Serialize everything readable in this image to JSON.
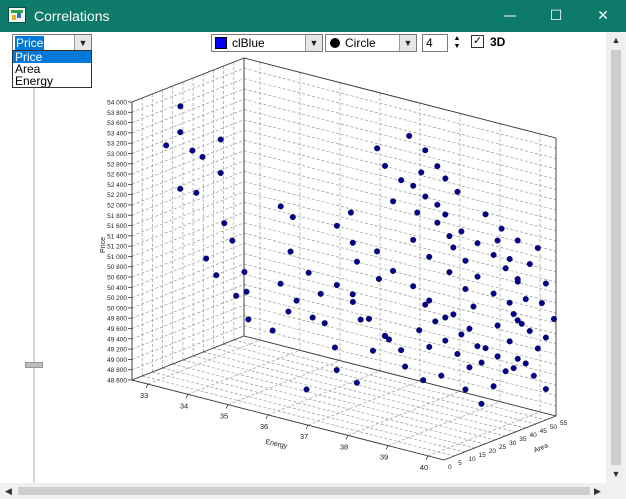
{
  "window": {
    "title": "Correlations",
    "controls": {
      "minimize": "—",
      "maximize": "☐",
      "close": "✕"
    }
  },
  "toolbar": {
    "axis_select": {
      "value": "Price",
      "options": [
        "Price",
        "Area",
        "Energy"
      ]
    },
    "color_select": {
      "value": "clBlue",
      "color": "#0000ee"
    },
    "shape_select": {
      "value": "Circle"
    },
    "size_spin": {
      "value": "4"
    },
    "three_d": {
      "label": "3D",
      "checked": true,
      "check_glyph": "✓"
    }
  },
  "chart_data": {
    "type": "scatter",
    "mode": "3d",
    "ylabel": "Price",
    "xlabel": "Energy",
    "zlabel": "Area",
    "y_ticks": [
      48600,
      48800,
      49000,
      49200,
      49400,
      49600,
      49800,
      50000,
      50200,
      50400,
      50600,
      50800,
      51000,
      51200,
      51400,
      51600,
      51800,
      52000,
      52200,
      52400,
      52600,
      52800,
      53000,
      53200,
      53400,
      53600,
      53800,
      54000
    ],
    "y_tick_labels": [
      "48 600",
      "48 800",
      "49 000",
      "49 200",
      "49 400",
      "49 600",
      "49 800",
      "50 000",
      "50 200",
      "50 400",
      "50 600",
      "50 800",
      "51 000",
      "51 200",
      "51 400",
      "51 600",
      "51 800",
      "52 000",
      "52 200",
      "52 400",
      "52 600",
      "52 800",
      "53 000",
      "53 200",
      "53 400",
      "53 600",
      "53 800",
      "54 000"
    ],
    "x_ticks": [
      33,
      34,
      35,
      36,
      37,
      38,
      39,
      40
    ],
    "z_ticks": [
      0,
      5,
      10,
      15,
      20,
      25,
      30,
      35,
      40,
      45,
      50,
      55
    ],
    "ylim": [
      48600,
      54000
    ],
    "xlim": [
      32.6,
      40.4
    ],
    "zlim": [
      0,
      55
    ],
    "grid": true,
    "marker": {
      "shape": "circle",
      "color": "#00008b",
      "size": 4
    },
    "points": [
      [
        33.3,
        53900,
        10
      ],
      [
        33.2,
        53200,
        5
      ],
      [
        33.4,
        53450,
        8
      ],
      [
        33.5,
        53050,
        12
      ],
      [
        33.6,
        52900,
        15
      ],
      [
        33.5,
        52400,
        6
      ],
      [
        33.8,
        53200,
        20
      ],
      [
        33.9,
        52600,
        18
      ],
      [
        33.7,
        52300,
        10
      ],
      [
        34.5,
        51900,
        8
      ],
      [
        34.6,
        51550,
        10
      ],
      [
        34.2,
        51200,
        5
      ],
      [
        34.8,
        50950,
        12
      ],
      [
        34.3,
        50850,
        8
      ],
      [
        34.9,
        50600,
        6
      ],
      [
        34.7,
        50500,
        15
      ],
      [
        35.0,
        50100,
        10
      ],
      [
        35.2,
        49800,
        18
      ],
      [
        35.3,
        52200,
        20
      ],
      [
        35.5,
        52000,
        22
      ],
      [
        35.8,
        51500,
        15
      ],
      [
        36.1,
        51100,
        18
      ],
      [
        36.3,
        50700,
        20
      ],
      [
        35.9,
        50400,
        12
      ],
      [
        36.4,
        49600,
        25
      ],
      [
        36.7,
        49300,
        20
      ],
      [
        36.2,
        48900,
        15
      ],
      [
        36.8,
        52300,
        25
      ],
      [
        37.0,
        51800,
        22
      ],
      [
        37.3,
        51600,
        28
      ],
      [
        37.5,
        51150,
        25
      ],
      [
        37.1,
        50850,
        20
      ],
      [
        37.4,
        50450,
        18
      ],
      [
        37.8,
        50150,
        22
      ],
      [
        37.2,
        53550,
        30
      ],
      [
        37.5,
        53300,
        28
      ],
      [
        37.7,
        53000,
        32
      ],
      [
        37.6,
        52600,
        30
      ],
      [
        37.9,
        52900,
        34
      ],
      [
        38.1,
        52700,
        36
      ],
      [
        38.0,
        52400,
        34
      ],
      [
        38.3,
        52200,
        38
      ],
      [
        37.9,
        53900,
        32
      ],
      [
        38.2,
        53650,
        34
      ],
      [
        38.4,
        53350,
        36
      ],
      [
        38.5,
        53100,
        38
      ],
      [
        38.7,
        52850,
        40
      ],
      [
        38.6,
        52450,
        36
      ],
      [
        38.9,
        52150,
        38
      ],
      [
        38.8,
        51850,
        36
      ],
      [
        38.3,
        51600,
        34
      ],
      [
        38.6,
        51300,
        38
      ],
      [
        38.9,
        51000,
        40
      ],
      [
        39.1,
        50700,
        40
      ],
      [
        38.7,
        50500,
        38
      ],
      [
        39.0,
        50250,
        40
      ],
      [
        39.3,
        49900,
        42
      ],
      [
        39.2,
        49600,
        42
      ],
      [
        39.5,
        52000,
        44
      ],
      [
        39.7,
        51650,
        46
      ],
      [
        39.9,
        51300,
        46
      ],
      [
        40.0,
        50900,
        48
      ],
      [
        39.8,
        50600,
        46
      ],
      [
        40.1,
        50300,
        48
      ],
      [
        40.2,
        49950,
        50
      ],
      [
        40.0,
        49650,
        48
      ],
      [
        38.5,
        49300,
        36
      ],
      [
        38.9,
        49050,
        40
      ],
      [
        39.2,
        48800,
        42
      ],
      [
        39.4,
        49150,
        44
      ],
      [
        39.6,
        49450,
        46
      ],
      [
        39.8,
        49700,
        48
      ],
      [
        40.1,
        49400,
        50
      ],
      [
        40.3,
        49150,
        52
      ],
      [
        39.1,
        51900,
        42
      ],
      [
        39.4,
        51700,
        44
      ],
      [
        39.6,
        51450,
        46
      ],
      [
        39.8,
        51200,
        48
      ],
      [
        40.0,
        51550,
        50
      ],
      [
        40.3,
        51200,
        52
      ],
      [
        40.2,
        50800,
        52
      ],
      [
        40.4,
        50500,
        54
      ],
      [
        38.0,
        51000,
        32
      ],
      [
        38.2,
        50650,
        34
      ],
      [
        38.4,
        50350,
        35
      ],
      [
        38.6,
        50000,
        36
      ],
      [
        38.8,
        49750,
        38
      ],
      [
        39.0,
        49500,
        40
      ],
      [
        38.3,
        49850,
        34
      ],
      [
        38.1,
        50150,
        33
      ],
      [
        36.5,
        52000,
        24
      ],
      [
        36.9,
        51350,
        26
      ],
      [
        37.6,
        49950,
        28
      ],
      [
        37.3,
        49700,
        26
      ],
      [
        37.9,
        49450,
        30
      ],
      [
        38.2,
        49200,
        33
      ],
      [
        37.0,
        49050,
        24
      ],
      [
        36.4,
        50150,
        20
      ],
      [
        39.3,
        52500,
        42
      ],
      [
        39.6,
        52250,
        44
      ],
      [
        39.9,
        52050,
        46
      ],
      [
        40.2,
        51900,
        50
      ],
      [
        39.7,
        50050,
        46
      ],
      [
        39.5,
        50350,
        44
      ],
      [
        39.9,
        50500,
        46
      ],
      [
        40.3,
        50150,
        52
      ],
      [
        38.1,
        53200,
        34
      ],
      [
        38.4,
        52600,
        36
      ],
      [
        38.6,
        52000,
        38
      ],
      [
        38.9,
        51550,
        40
      ],
      [
        39.1,
        51250,
        42
      ],
      [
        39.4,
        50950,
        44
      ],
      [
        39.7,
        50800,
        46
      ],
      [
        39.9,
        50400,
        48
      ],
      [
        37.7,
        51300,
        28
      ],
      [
        38.0,
        51900,
        32
      ],
      [
        38.3,
        50750,
        34
      ],
      [
        38.6,
        50450,
        36
      ],
      [
        38.9,
        50150,
        38
      ],
      [
        39.2,
        49950,
        40
      ],
      [
        39.5,
        49750,
        44
      ],
      [
        39.8,
        49550,
        46
      ],
      [
        35.6,
        50850,
        14
      ],
      [
        35.9,
        50550,
        16
      ],
      [
        36.2,
        50250,
        18
      ],
      [
        36.6,
        50900,
        22
      ],
      [
        36.9,
        50600,
        24
      ],
      [
        37.2,
        50300,
        26
      ],
      [
        37.5,
        50000,
        28
      ],
      [
        37.8,
        49750,
        30
      ]
    ]
  }
}
